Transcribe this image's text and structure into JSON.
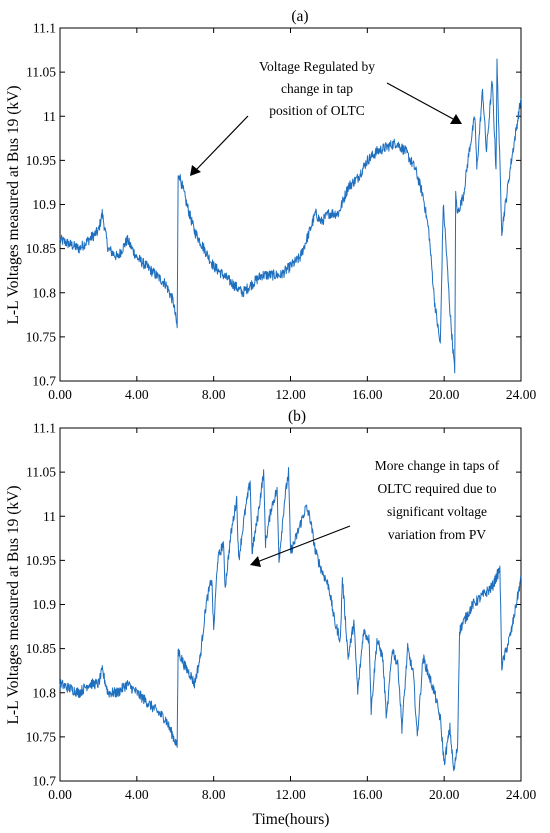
{
  "chart_data": [
    {
      "type": "line",
      "title": "(a)",
      "xlabel": "",
      "ylabel": "L-L Voltages measured at Bus 19 (kV)",
      "xlim": [
        0,
        24
      ],
      "ylim": [
        10.7,
        11.1
      ],
      "x_tick_labels": [
        "0.00",
        "4.00",
        "8.00",
        "12.00",
        "16.00",
        "20.00",
        "24.00"
      ],
      "y_tick_labels": [
        "10.7",
        "10.75",
        "10.8",
        "10.85",
        "10.9",
        "10.95",
        "11",
        "11.05",
        "11.1"
      ],
      "series": [
        {
          "x": [
            0.0,
            0.5,
            1.0,
            1.5,
            2.0,
            2.2,
            2.5,
            3.0,
            3.5,
            4.0,
            4.5,
            5.0,
            5.5,
            5.9,
            6.1,
            6.15,
            6.2,
            6.6,
            7.0,
            7.5,
            8.0,
            8.5,
            9.0,
            9.5,
            10.0,
            10.5,
            11.0,
            11.5,
            12.0,
            12.5,
            13.0,
            13.3,
            13.6,
            14.0,
            14.5,
            15.0,
            15.5,
            16.0,
            16.5,
            17.0,
            17.5,
            18.0,
            18.5,
            18.9,
            19.2,
            19.5,
            19.8,
            19.95,
            20.05,
            20.3,
            20.55,
            20.6,
            20.7,
            21.0,
            21.3,
            21.6,
            21.7,
            22.0,
            22.2,
            22.5,
            22.7,
            22.75,
            23.0,
            23.5,
            24.0
          ],
          "y": [
            10.86,
            10.855,
            10.85,
            10.86,
            10.87,
            10.89,
            10.85,
            10.84,
            10.86,
            10.84,
            10.83,
            10.82,
            10.81,
            10.79,
            10.76,
            10.93,
            10.935,
            10.9,
            10.87,
            10.85,
            10.83,
            10.82,
            10.81,
            10.8,
            10.81,
            10.82,
            10.82,
            10.82,
            10.83,
            10.84,
            10.87,
            10.89,
            10.88,
            10.89,
            10.89,
            10.92,
            10.93,
            10.95,
            10.96,
            10.965,
            10.97,
            10.96,
            10.94,
            10.91,
            10.87,
            10.79,
            10.74,
            10.9,
            10.87,
            10.78,
            10.71,
            10.91,
            10.89,
            10.91,
            10.96,
            11.0,
            10.94,
            11.03,
            10.96,
            11.04,
            10.94,
            11.06,
            10.87,
            10.95,
            11.02
          ]
        }
      ],
      "annotations": [
        "Voltage Regulated by",
        "change in tap",
        "position of OLTC"
      ]
    },
    {
      "type": "line",
      "title": "(b)",
      "xlabel": "Time(hours)",
      "ylabel": "L-L Voltages measured at Bus 19 (kV)",
      "xlim": [
        0,
        24
      ],
      "ylim": [
        10.7,
        11.1
      ],
      "x_tick_labels": [
        "0.00",
        "4.00",
        "8.00",
        "12.00",
        "16.00",
        "20.00",
        "24.00"
      ],
      "y_tick_labels": [
        "10.7",
        "10.75",
        "10.8",
        "10.85",
        "10.9",
        "10.95",
        "11",
        "11.05",
        "11.1"
      ],
      "series": [
        {
          "x": [
            0.0,
            0.5,
            1.0,
            1.5,
            2.0,
            2.2,
            2.5,
            3.0,
            3.5,
            4.0,
            4.5,
            5.0,
            5.5,
            5.9,
            6.1,
            6.15,
            6.2,
            6.5,
            6.8,
            7.0,
            7.3,
            7.6,
            7.9,
            8.0,
            8.2,
            8.5,
            8.6,
            8.9,
            9.2,
            9.3,
            9.6,
            9.9,
            10.0,
            10.3,
            10.6,
            10.7,
            11.0,
            11.3,
            11.4,
            11.7,
            11.9,
            12.0,
            12.2,
            12.5,
            12.8,
            13.0,
            13.3,
            13.6,
            14.0,
            14.3,
            14.6,
            14.7,
            15.0,
            15.3,
            15.5,
            15.8,
            16.1,
            16.2,
            16.5,
            16.8,
            17.0,
            17.3,
            17.6,
            17.8,
            18.1,
            18.4,
            18.6,
            18.9,
            19.2,
            19.5,
            19.8,
            20.0,
            20.3,
            20.5,
            20.7,
            20.8,
            21.0,
            21.5,
            22.0,
            22.5,
            22.9,
            23.0,
            23.5,
            24.0
          ],
          "y": [
            10.81,
            10.805,
            10.8,
            10.81,
            10.81,
            10.825,
            10.8,
            10.8,
            10.81,
            10.8,
            10.79,
            10.78,
            10.77,
            10.75,
            10.74,
            10.85,
            10.845,
            10.83,
            10.82,
            10.81,
            10.84,
            10.9,
            10.93,
            10.87,
            10.95,
            10.97,
            10.92,
            10.98,
            11.02,
            10.95,
            11.0,
            11.04,
            10.96,
            11.0,
            11.05,
            10.97,
            11.01,
            11.03,
            10.95,
            11.02,
            11.05,
            10.96,
            10.97,
            10.99,
            11.01,
            11.0,
            10.96,
            10.94,
            10.92,
            10.88,
            10.86,
            10.93,
            10.84,
            10.88,
            10.8,
            10.87,
            10.86,
            10.78,
            10.86,
            10.84,
            10.77,
            10.85,
            10.83,
            10.76,
            10.85,
            10.82,
            10.75,
            10.84,
            10.82,
            10.8,
            10.77,
            10.72,
            10.76,
            10.71,
            10.74,
            10.87,
            10.88,
            10.9,
            10.91,
            10.92,
            10.94,
            10.83,
            10.87,
            10.93
          ]
        }
      ],
      "annotations": [
        "More change in taps of",
        "OLTC required due to",
        "significant voltage",
        "variation from PV"
      ]
    }
  ]
}
